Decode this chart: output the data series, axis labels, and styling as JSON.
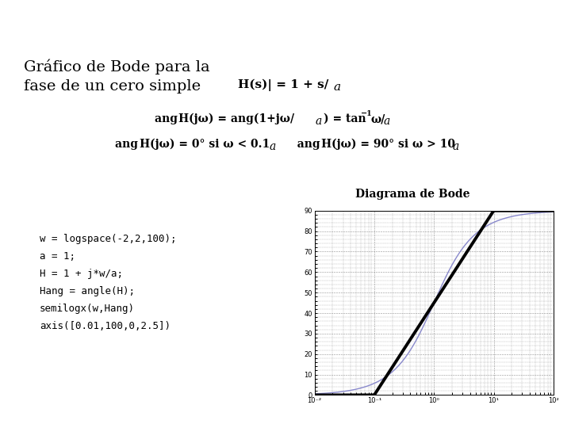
{
  "title_line1": "Gráfico de Bode para la",
  "title_line2": "fase de un cero simple",
  "diagram_title": "Diagrama de Bode",
  "code_lines": [
    "w = logspace(-2,2,100);",
    "a = 1;",
    "H = 1 + j*w/a;",
    "Hang = angle(H);",
    "semilogx(w,Hang)",
    "axis([0.01,100,0,2.5])"
  ],
  "plot_gray": "#c0c0c0",
  "approx_color": "#000000",
  "exact_color": "#8888cc",
  "grid_color": "#777777"
}
